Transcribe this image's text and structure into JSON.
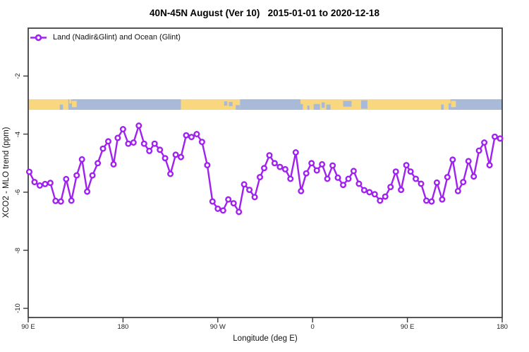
{
  "colors": {
    "series": "#A020F0",
    "marker_fill": "#ffffff",
    "land": "#F9D77E",
    "ocean": "#A8BAD8",
    "axis": "#383838",
    "text": "#111111"
  },
  "chart_data": {
    "type": "line",
    "title": "40N-45N August (Ver 10)   2015-01-01 to 2020-12-18",
    "xlabel": "Longitude (deg E)",
    "ylabel": "XCO2 - MLO trend (ppm)",
    "legend": [
      "Land (Nadir&Glint) and Ocean (Glint)"
    ],
    "legend_position": "top-left-inside",
    "grid": false,
    "xlim": [
      90,
      540
    ],
    "ylim": [
      -10.3,
      -0.35
    ],
    "x_axis_note": "longitude along axis in deg E, wrapping eastward: 90E to 180 to 90W to 0 to 90E to 180",
    "x_ticks": [
      {
        "deg": 90,
        "label": "90 E"
      },
      {
        "deg": 180,
        "label": "180"
      },
      {
        "deg": 270,
        "label": "90 W"
      },
      {
        "deg": 360,
        "label": "0"
      },
      {
        "deg": 450,
        "label": "90 E"
      },
      {
        "deg": 540,
        "label": "180"
      }
    ],
    "y_ticks": [
      {
        "value": -2,
        "label": "-2"
      },
      {
        "value": -4,
        "label": "-4"
      },
      {
        "value": -6,
        "label": "-6"
      },
      {
        "value": -8,
        "label": "-8"
      },
      {
        "value": -10,
        "label": "-10"
      }
    ],
    "x_deg": [
      91,
      96,
      101,
      106,
      111,
      116,
      121,
      126,
      131,
      136,
      141,
      146,
      151,
      156,
      161,
      166,
      171,
      175,
      180,
      185,
      190,
      195,
      200,
      205,
      210,
      215,
      220,
      225,
      230,
      235,
      240,
      245,
      250,
      255,
      260,
      265,
      270,
      275,
      280,
      285,
      290,
      295,
      300,
      305,
      310,
      314,
      319,
      324,
      329,
      334,
      339,
      344,
      349,
      354,
      359,
      364,
      369,
      374,
      379,
      384,
      389,
      394,
      399,
      404,
      409,
      414,
      419,
      424,
      429,
      434,
      439,
      444,
      449,
      453,
      458,
      463,
      468,
      473,
      478,
      483,
      488,
      493,
      498,
      503,
      508,
      513,
      518,
      523,
      528,
      533,
      538
    ],
    "y_ppm": [
      -5.3,
      -5.65,
      -5.77,
      -5.72,
      -5.68,
      -6.3,
      -6.32,
      -5.55,
      -6.29,
      -5.42,
      -4.87,
      -5.98,
      -5.42,
      -5.0,
      -4.5,
      -4.25,
      -5.04,
      -4.13,
      -3.83,
      -4.33,
      -4.29,
      -3.71,
      -4.33,
      -4.58,
      -4.33,
      -4.54,
      -4.83,
      -5.37,
      -4.71,
      -4.79,
      -4.04,
      -4.1,
      -4.0,
      -4.27,
      -5.07,
      -6.32,
      -6.57,
      -6.63,
      -6.25,
      -6.38,
      -6.68,
      -5.73,
      -5.92,
      -6.17,
      -5.48,
      -5.17,
      -4.73,
      -5.0,
      -5.13,
      -5.21,
      -5.54,
      -4.63,
      -5.96,
      -5.35,
      -5.0,
      -5.25,
      -5.04,
      -5.54,
      -5.08,
      -5.5,
      -5.75,
      -5.54,
      -5.27,
      -5.71,
      -5.93,
      -6.0,
      -6.07,
      -6.29,
      -6.15,
      -5.82,
      -5.29,
      -5.92,
      -5.07,
      -5.29,
      -5.54,
      -5.71,
      -6.29,
      -6.32,
      -5.67,
      -6.25,
      -5.48,
      -4.88,
      -5.96,
      -5.65,
      -4.93,
      -5.46,
      -4.57,
      -4.29,
      -5.07,
      -4.09,
      -4.15
    ],
    "land_ocean_strip": {
      "description": "horizontal land/ocean map strip across all longitudes",
      "value_range_ppm": [
        -2.8,
        -3.16
      ],
      "segments": [
        {
          "from": 90,
          "to": 128,
          "type": "land"
        },
        {
          "from": 128,
          "to": 235,
          "type": "ocean"
        },
        {
          "from": 235,
          "to": 291,
          "type": "land"
        },
        {
          "from": 291,
          "to": 351,
          "type": "ocean"
        },
        {
          "from": 351,
          "to": 489,
          "type": "land"
        },
        {
          "from": 489,
          "to": 540,
          "type": "ocean"
        }
      ],
      "patches": [
        [
          120,
          123,
          0.5,
          1.0,
          "ocean"
        ],
        [
          129,
          131,
          0.0,
          0.4,
          "land"
        ],
        [
          131.5,
          136,
          0.15,
          0.75,
          "land"
        ],
        [
          276,
          279,
          0.2,
          0.6,
          "ocean"
        ],
        [
          280.5,
          284,
          0.25,
          0.65,
          "ocean"
        ],
        [
          287,
          291,
          0.55,
          1.0,
          "ocean"
        ],
        [
          348.5,
          351,
          0.0,
          0.45,
          "land"
        ],
        [
          355,
          357,
          0.6,
          1.0,
          "ocean"
        ],
        [
          361,
          367,
          0.45,
          1.0,
          "ocean"
        ],
        [
          368.5,
          371.5,
          0.3,
          0.8,
          "ocean"
        ],
        [
          373,
          377,
          0.5,
          1.0,
          "ocean"
        ],
        [
          389,
          397,
          0.15,
          0.7,
          "ocean"
        ],
        [
          406,
          412,
          0.1,
          0.9,
          "ocean"
        ],
        [
          482,
          484.5,
          0.5,
          1.0,
          "ocean"
        ],
        [
          489,
          491,
          0.0,
          0.4,
          "land"
        ],
        [
          491.5,
          496,
          0.15,
          0.75,
          "land"
        ]
      ]
    }
  }
}
